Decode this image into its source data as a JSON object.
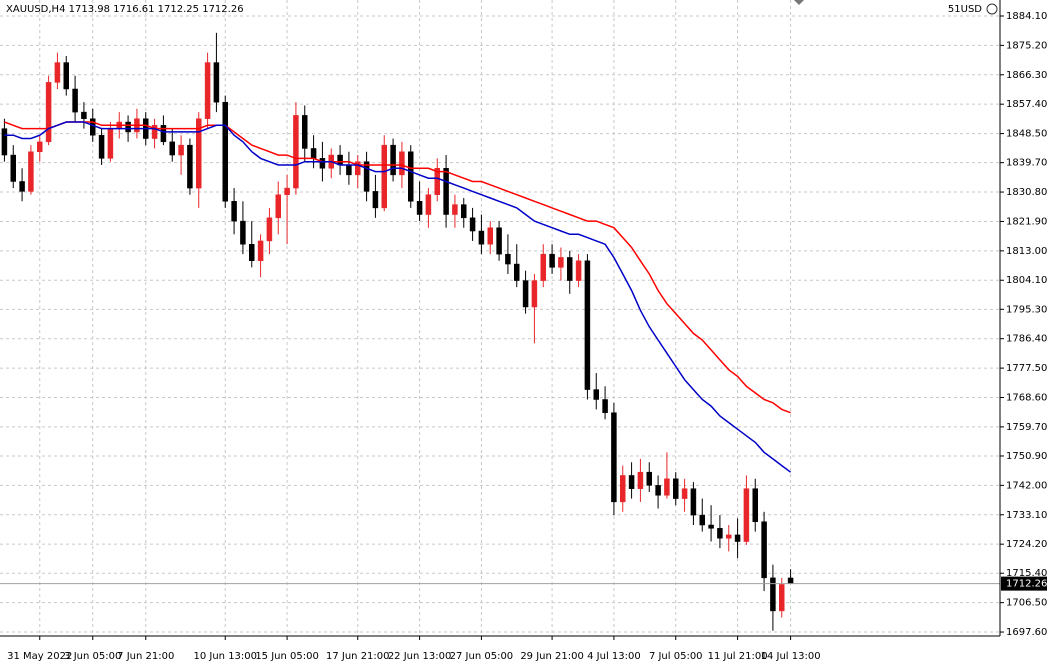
{
  "chart_data": {
    "type": "candlestick",
    "title": "XAUUSD,H4  1713.98 1716.61 1712.25 1712.26",
    "account": "51USD",
    "categories": [
      null,
      null,
      null,
      null,
      "31 May 2022",
      null,
      null,
      null,
      null,
      null,
      "3 Jun 05:00",
      null,
      null,
      null,
      null,
      null,
      "7 Jun 21:00",
      null,
      null,
      null,
      null,
      null,
      null,
      null,
      null,
      "10 Jun 13:00",
      null,
      null,
      null,
      null,
      null,
      null,
      "15 Jun 05:00",
      null,
      null,
      null,
      null,
      null,
      null,
      null,
      "17 Jun 21:00",
      null,
      null,
      null,
      null,
      null,
      null,
      "22 Jun 13:00",
      null,
      null,
      null,
      null,
      null,
      null,
      "27 Jun 05:00",
      null,
      null,
      null,
      null,
      null,
      null,
      null,
      "29 Jun 21:00",
      null,
      null,
      null,
      null,
      null,
      null,
      "4 Jul 13:00",
      null,
      null,
      null,
      null,
      null,
      null,
      "7 Jul 05:00",
      null,
      null,
      null,
      null,
      null,
      null,
      "11 Jul 21:00",
      null,
      null,
      null,
      null,
      null,
      "14 Jul 13:00"
    ],
    "open": [
      1850,
      1842,
      1834,
      1831,
      1843,
      1846,
      1864,
      1870,
      1862,
      1855,
      1853,
      1848,
      1841,
      1850,
      1852,
      1849,
      1853,
      1847,
      1851,
      1846,
      1842,
      1845,
      1832,
      1853,
      1870,
      1858,
      1828,
      1822,
      1815,
      1810,
      1816,
      1823,
      1830,
      1832,
      1854,
      1844,
      1841,
      1838,
      1842,
      1839,
      1836,
      1840,
      1831,
      1826,
      1845,
      1836,
      1843,
      1828,
      1824,
      1830,
      1838,
      1824,
      1827,
      1823,
      1819,
      1815,
      1820,
      1812,
      1809,
      1804,
      1796,
      1804,
      1812,
      1808,
      1811,
      1804,
      1810,
      1771,
      1768,
      1764,
      1737,
      1745,
      1741,
      1746,
      1742,
      1739,
      1744,
      1738,
      1741,
      1733,
      1730,
      1729,
      1726,
      1727,
      1725,
      1741,
      1731,
      1714,
      1704,
      1713.98
    ],
    "high": [
      1853,
      1845,
      1838,
      1845,
      1848,
      1866,
      1873,
      1872,
      1866,
      1858,
      1856,
      1850,
      1852,
      1855,
      1854,
      1856,
      1855,
      1853,
      1854,
      1850,
      1848,
      1847,
      1855,
      1873,
      1879,
      1860,
      1832,
      1828,
      1822,
      1818,
      1826,
      1834,
      1836,
      1858,
      1857,
      1848,
      1846,
      1844,
      1845,
      1843,
      1842,
      1843,
      1836,
      1848,
      1847,
      1846,
      1845,
      1834,
      1832,
      1841,
      1842,
      1830,
      1829,
      1826,
      1824,
      1822,
      1822,
      1818,
      1815,
      1807,
      1806,
      1815,
      1815,
      1814,
      1813,
      1812,
      1812,
      1776,
      1772,
      1767,
      1748,
      1749,
      1750,
      1749,
      1745,
      1752,
      1746,
      1744,
      1743,
      1738,
      1736,
      1733,
      1730,
      1732,
      1745,
      1744,
      1734,
      1718,
      1714,
      1716.61
    ],
    "low": [
      1840,
      1832,
      1828,
      1830,
      1840,
      1845,
      1862,
      1860,
      1852,
      1850,
      1846,
      1839,
      1840,
      1847,
      1846,
      1847,
      1845,
      1844,
      1845,
      1840,
      1836,
      1830,
      1826,
      1850,
      1855,
      1826,
      1818,
      1812,
      1808,
      1805,
      1812,
      1818,
      1815,
      1830,
      1840,
      1838,
      1834,
      1835,
      1836,
      1833,
      1832,
      1828,
      1823,
      1825,
      1834,
      1832,
      1826,
      1822,
      1820,
      1828,
      1820,
      1820,
      1820,
      1816,
      1812,
      1812,
      1810,
      1806,
      1802,
      1794,
      1785,
      1802,
      1806,
      1804,
      1800,
      1802,
      1768,
      1765,
      1762,
      1733,
      1734,
      1738,
      1737,
      1740,
      1735,
      1738,
      1736,
      1734,
      1730,
      1728,
      1725,
      1723,
      1722,
      1720,
      1724,
      1728,
      1710,
      1698,
      1702,
      1712.25
    ],
    "close": [
      1842,
      1834,
      1831,
      1843,
      1846,
      1864,
      1870,
      1862,
      1855,
      1853,
      1848,
      1841,
      1850,
      1852,
      1849,
      1853,
      1847,
      1851,
      1846,
      1842,
      1845,
      1832,
      1853,
      1870,
      1858,
      1828,
      1822,
      1815,
      1810,
      1816,
      1823,
      1830,
      1832,
      1854,
      1844,
      1841,
      1838,
      1842,
      1839,
      1836,
      1840,
      1831,
      1826,
      1845,
      1836,
      1843,
      1828,
      1824,
      1830,
      1838,
      1824,
      1827,
      1823,
      1819,
      1815,
      1820,
      1812,
      1809,
      1804,
      1796,
      1804,
      1812,
      1808,
      1811,
      1804,
      1810,
      1771,
      1768,
      1764,
      1737,
      1745,
      1741,
      1746,
      1742,
      1739,
      1744,
      1738,
      1741,
      1733,
      1730,
      1729,
      1726,
      1727,
      1725,
      1741,
      1731,
      1714,
      1704,
      1712,
      1712.26
    ],
    "up_color": "#e8262a",
    "down_color": "#000000",
    "series": [
      {
        "color": "#ff0000",
        "values": [
          1852,
          1851,
          1850,
          1850,
          1850,
          1850,
          1851,
          1852,
          1852,
          1852,
          1852,
          1851,
          1851,
          1851,
          1851,
          1851,
          1851,
          1850,
          1850,
          1850,
          1850,
          1850,
          1850,
          1851,
          1851,
          1851,
          1849,
          1847,
          1845,
          1844,
          1843,
          1842,
          1842,
          1841,
          1841,
          1841,
          1840,
          1840,
          1840,
          1840,
          1839,
          1839,
          1839,
          1839,
          1839,
          1839,
          1838,
          1838,
          1838,
          1837,
          1837,
          1836,
          1835,
          1834,
          1834,
          1833,
          1832,
          1831,
          1830,
          1829,
          1828,
          1827,
          1826,
          1825,
          1824,
          1823,
          1822,
          1822,
          1821,
          1820,
          1817,
          1814,
          1810,
          1806,
          1801,
          1797,
          1794,
          1791,
          1788,
          1786,
          1783,
          1780,
          1777,
          1775,
          1772,
          1770,
          1768,
          1767,
          1765,
          1764
        ]
      },
      {
        "color": "#0000c8",
        "values": [
          1848,
          1848,
          1847,
          1847,
          1848,
          1850,
          1851,
          1852,
          1852,
          1852,
          1851,
          1850,
          1850,
          1850,
          1850,
          1850,
          1850,
          1850,
          1849,
          1849,
          1849,
          1849,
          1849,
          1850,
          1851,
          1851,
          1848,
          1846,
          1843,
          1841,
          1840,
          1839,
          1839,
          1839,
          1840,
          1840,
          1840,
          1840,
          1839,
          1839,
          1839,
          1838,
          1837,
          1837,
          1838,
          1838,
          1837,
          1836,
          1835,
          1835,
          1834,
          1833,
          1832,
          1831,
          1830,
          1829,
          1828,
          1827,
          1826,
          1824,
          1822,
          1821,
          1820,
          1819,
          1818,
          1818,
          1817,
          1816,
          1815,
          1811,
          1806,
          1801,
          1795,
          1790,
          1786,
          1782,
          1778,
          1774,
          1771,
          1768,
          1766,
          1763,
          1761,
          1759,
          1757,
          1755,
          1752,
          1750,
          1748,
          1746
        ]
      }
    ],
    "last_price": {
      "value": 1712.26,
      "label": "1712.26"
    },
    "ylim": [
      1696.4,
      1888.94
    ],
    "yticks": [
      {
        "value": 1884.1,
        "label": "1884.10"
      },
      {
        "value": 1875.2,
        "label": "1875.20"
      },
      {
        "value": 1866.3,
        "label": "1866.30"
      },
      {
        "value": 1857.4,
        "label": "1857.40"
      },
      {
        "value": 1848.5,
        "label": "1848.50"
      },
      {
        "value": 1839.7,
        "label": "1839.70"
      },
      {
        "value": 1830.8,
        "label": "1830.80"
      },
      {
        "value": 1821.9,
        "label": "1821.90"
      },
      {
        "value": 1813,
        "label": "1813.00"
      },
      {
        "value": 1804.1,
        "label": "1804.10"
      },
      {
        "value": 1795.3,
        "label": "1795.30"
      },
      {
        "value": 1786.4,
        "label": "1786.40"
      },
      {
        "value": 1777.5,
        "label": "1777.50"
      },
      {
        "value": 1768.6,
        "label": "1768.60"
      },
      {
        "value": 1759.7,
        "label": "1759.70"
      },
      {
        "value": 1750.9,
        "label": "1750.90"
      },
      {
        "value": 1742,
        "label": "1742.00"
      },
      {
        "value": 1733.1,
        "label": "1733.10"
      },
      {
        "value": 1724.2,
        "label": "1724.20"
      },
      {
        "value": 1715.4,
        "label": "1715.40"
      },
      {
        "value": 1706.5,
        "label": "1706.50"
      },
      {
        "value": 1697.6,
        "label": "1697.60"
      }
    ],
    "grid": true
  }
}
